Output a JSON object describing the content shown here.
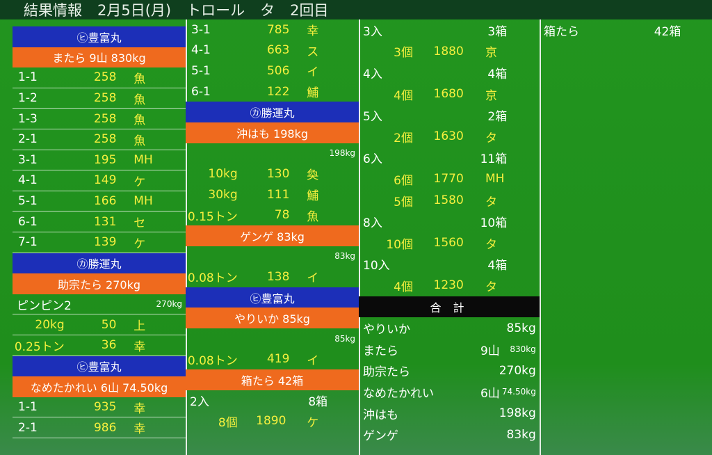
{
  "header": {
    "title_parts": [
      "結果情報",
      "2月5日(月)",
      "トロール",
      "タ",
      "2回目"
    ]
  },
  "columns": [
    {
      "rows": [
        {
          "kind": "ship",
          "cells": [
            "㋪豊富丸"
          ]
        },
        {
          "kind": "lot",
          "cells": [
            "またら 9山 830kg"
          ]
        },
        {
          "kind": "lot-item",
          "cells": [
            "1-1",
            "258",
            "魚"
          ]
        },
        {
          "kind": "lot-item",
          "cells": [
            "1-2",
            "258",
            "魚"
          ]
        },
        {
          "kind": "lot-item",
          "cells": [
            "1-3",
            "258",
            "魚"
          ]
        },
        {
          "kind": "lot-item",
          "cells": [
            "2-1",
            "258",
            "魚"
          ]
        },
        {
          "kind": "lot-item",
          "cells": [
            "3-1",
            "195",
            "MH"
          ]
        },
        {
          "kind": "lot-item",
          "cells": [
            "4-1",
            "149",
            "ケ"
          ]
        },
        {
          "kind": "lot-item",
          "cells": [
            "5-1",
            "166",
            "MH"
          ]
        },
        {
          "kind": "lot-item",
          "cells": [
            "6-1",
            "131",
            "セ"
          ]
        },
        {
          "kind": "lot-item",
          "cells": [
            "7-1",
            "139",
            "ケ"
          ]
        },
        {
          "kind": "ship",
          "cells": [
            "㋕勝運丸"
          ]
        },
        {
          "kind": "lot",
          "cells": [
            "助宗たら 270kg"
          ]
        },
        {
          "kind": "note",
          "cells": [
            "ピンピン2",
            "270kg"
          ]
        },
        {
          "kind": "weight-item",
          "cells": [
            "20kg",
            "50",
            "上"
          ]
        },
        {
          "kind": "weight-item",
          "cells": [
            "0.25トン",
            "36",
            "幸"
          ]
        },
        {
          "kind": "ship",
          "cells": [
            "㋪豊富丸"
          ]
        },
        {
          "kind": "lot",
          "cells": [
            "なめたかれい 6山 74.50kg"
          ]
        },
        {
          "kind": "lot-item",
          "cells": [
            "1-1",
            "935",
            "幸"
          ]
        },
        {
          "kind": "lot-item",
          "cells": [
            "2-1",
            "986",
            "幸"
          ]
        }
      ]
    },
    {
      "rows": [
        {
          "kind": "lot-item",
          "cells": [
            "3-1",
            "785",
            "幸"
          ]
        },
        {
          "kind": "lot-item",
          "cells": [
            "4-1",
            "663",
            "ス"
          ]
        },
        {
          "kind": "lot-item",
          "cells": [
            "5-1",
            "506",
            "イ"
          ]
        },
        {
          "kind": "lot-item",
          "cells": [
            "6-1",
            "122",
            "鯆"
          ]
        },
        {
          "kind": "ship",
          "cells": [
            "㋕勝運丸"
          ]
        },
        {
          "kind": "lot",
          "cells": [
            "沖はも 198kg"
          ]
        },
        {
          "kind": "note",
          "cells": [
            "198kg"
          ]
        },
        {
          "kind": "weight-item",
          "cells": [
            "10kg",
            "130",
            "奐"
          ]
        },
        {
          "kind": "weight-item",
          "cells": [
            "30kg",
            "111",
            "鯆"
          ]
        },
        {
          "kind": "weight-item",
          "cells": [
            "0.15トン",
            "78",
            "魚"
          ]
        },
        {
          "kind": "lot",
          "cells": [
            "ゲンゲ 83kg"
          ]
        },
        {
          "kind": "note",
          "cells": [
            "83kg"
          ]
        },
        {
          "kind": "weight-item",
          "cells": [
            "0.08トン",
            "138",
            "イ"
          ]
        },
        {
          "kind": "ship",
          "cells": [
            "㋪豊富丸"
          ]
        },
        {
          "kind": "lot",
          "cells": [
            "やりいか 85kg"
          ]
        },
        {
          "kind": "note",
          "cells": [
            "85kg"
          ]
        },
        {
          "kind": "weight-item",
          "cells": [
            "0.08トン",
            "419",
            "イ"
          ]
        },
        {
          "kind": "lot",
          "cells": [
            "箱たら 42箱"
          ]
        },
        {
          "kind": "pack",
          "cells": [
            "2入",
            "8箱"
          ]
        },
        {
          "kind": "count-item",
          "cells": [
            "8個",
            "1890",
            "ケ"
          ]
        }
      ]
    },
    {
      "rows": [
        {
          "kind": "pack",
          "cells": [
            "3入",
            "3箱"
          ]
        },
        {
          "kind": "count-item",
          "cells": [
            "3個",
            "1880",
            "京"
          ]
        },
        {
          "kind": "pack",
          "cells": [
            "4入",
            "4箱"
          ]
        },
        {
          "kind": "count-item",
          "cells": [
            "4個",
            "1680",
            "京"
          ]
        },
        {
          "kind": "pack",
          "cells": [
            "5入",
            "2箱"
          ]
        },
        {
          "kind": "count-item",
          "cells": [
            "2個",
            "1630",
            "タ"
          ]
        },
        {
          "kind": "pack",
          "cells": [
            "6入",
            "11箱"
          ]
        },
        {
          "kind": "count-item",
          "cells": [
            "6個",
            "1770",
            "MH"
          ]
        },
        {
          "kind": "count-item",
          "cells": [
            "5個",
            "1580",
            "タ"
          ]
        },
        {
          "kind": "pack",
          "cells": [
            "8入",
            "10箱"
          ]
        },
        {
          "kind": "count-item",
          "cells": [
            "10個",
            "1560",
            "タ"
          ]
        },
        {
          "kind": "pack",
          "cells": [
            "10入",
            "4箱"
          ]
        },
        {
          "kind": "count-item",
          "cells": [
            "4個",
            "1230",
            "タ"
          ]
        },
        {
          "kind": "total-head",
          "cells": [
            "合 計"
          ]
        },
        {
          "kind": "total",
          "cells": [
            "やりいか",
            "85kg"
          ]
        },
        {
          "kind": "total",
          "cells": [
            "またら",
            "9山",
            "830kg"
          ]
        },
        {
          "kind": "total",
          "cells": [
            "助宗たら",
            "270kg"
          ]
        },
        {
          "kind": "total",
          "cells": [
            "なめたかれい",
            "6山",
            "74.50kg"
          ]
        },
        {
          "kind": "total",
          "cells": [
            "沖はも",
            "198kg"
          ]
        },
        {
          "kind": "total",
          "cells": [
            "ゲンゲ",
            "83kg"
          ]
        }
      ]
    },
    {
      "rows": [
        {
          "kind": "pack",
          "cells": [
            "箱たら",
            "42箱"
          ]
        }
      ]
    }
  ]
}
